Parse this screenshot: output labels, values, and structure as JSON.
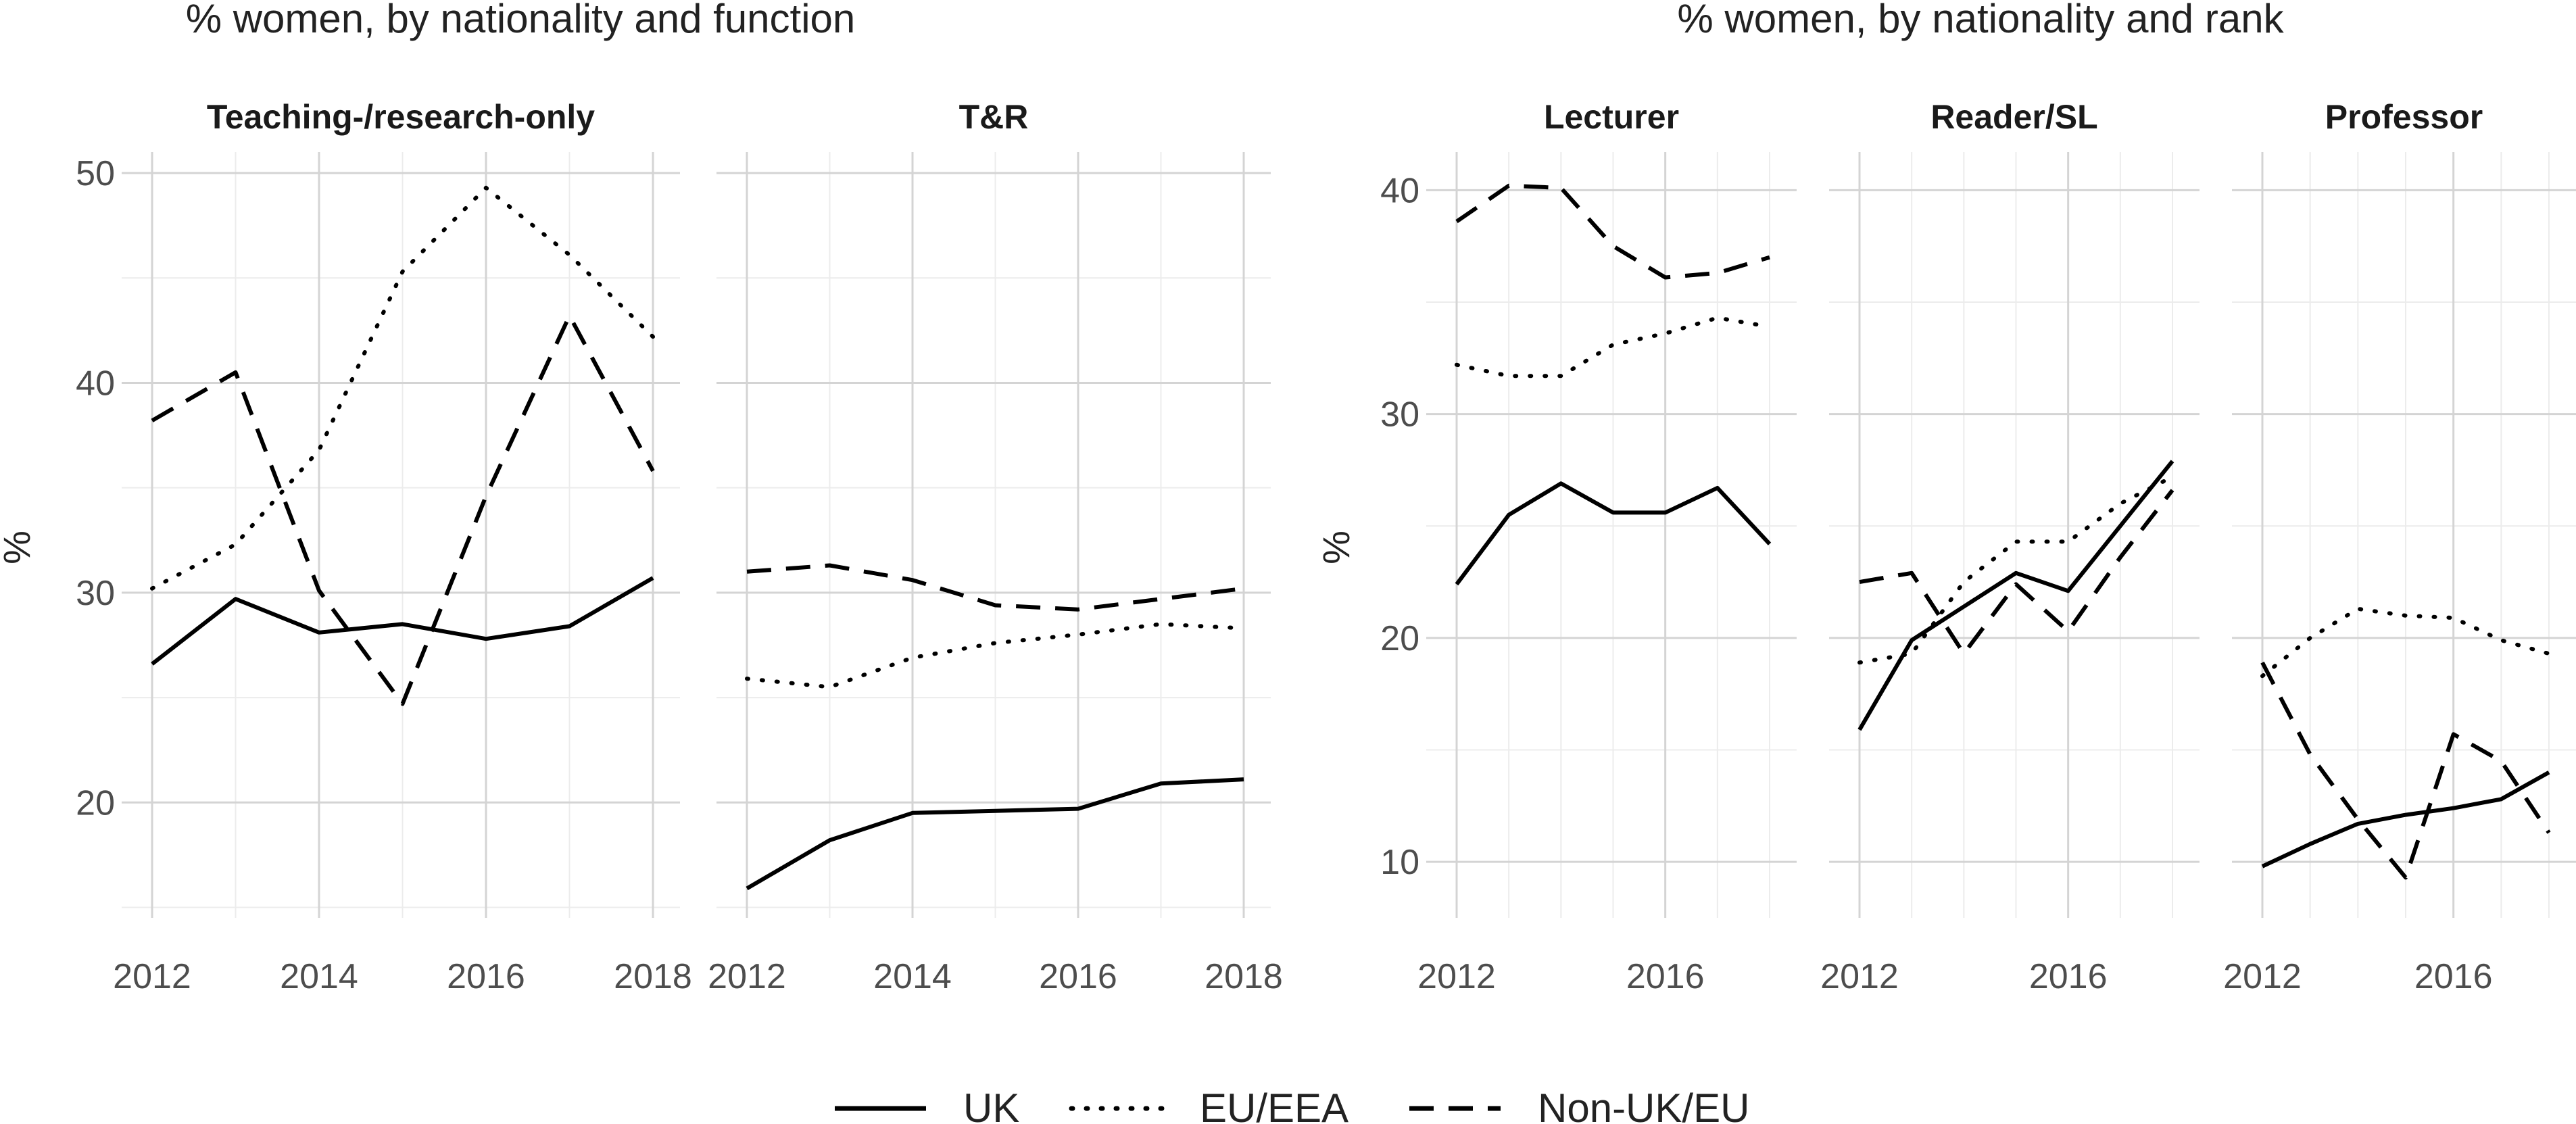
{
  "chart_data": [
    {
      "type": "line",
      "title": "% women, by nationality and function",
      "ylabel": "%",
      "xlabel": "",
      "ylim": [
        14.5,
        51
      ],
      "yticks": [
        20,
        30,
        40,
        50
      ],
      "ytick_labels": [
        "20",
        "30",
        "40",
        "50"
      ],
      "xlim": [
        2012,
        2018
      ],
      "xticks": [
        2012,
        2014,
        2016,
        2018
      ],
      "xtick_labels": [
        "2012",
        "2014",
        "2016",
        "2018"
      ],
      "grid": true,
      "legend": "bottom",
      "panels": [
        {
          "title": "Teaching-/research-only",
          "x": [
            2012,
            2013,
            2014,
            2015,
            2016,
            2017,
            2018
          ],
          "series": [
            {
              "name": "UK",
              "values": [
                26.6,
                29.7,
                28.1,
                28.5,
                27.8,
                28.4,
                30.7
              ]
            },
            {
              "name": "EU/EEA",
              "values": [
                30.2,
                32.3,
                36.8,
                45.3,
                49.3,
                46.1,
                42.2
              ]
            },
            {
              "name": "Non-UK/EU",
              "values": [
                38.2,
                40.5,
                30.1,
                24.7,
                34.6,
                43.2,
                35.8
              ]
            }
          ]
        },
        {
          "title": "T&R",
          "x": [
            2012,
            2013,
            2014,
            2015,
            2016,
            2017,
            2018
          ],
          "series": [
            {
              "name": "UK",
              "values": [
                15.9,
                18.2,
                19.5,
                19.6,
                19.7,
                20.9,
                21.1
              ]
            },
            {
              "name": "EU/EEA",
              "values": [
                25.9,
                25.5,
                26.9,
                27.6,
                28.0,
                28.5,
                28.3
              ]
            },
            {
              "name": "Non-UK/EU",
              "values": [
                31.0,
                31.3,
                30.6,
                29.4,
                29.2,
                29.7,
                30.2
              ]
            }
          ]
        }
      ]
    },
    {
      "type": "line",
      "title": "% women, by nationality and rank",
      "ylabel": "%",
      "xlabel": "",
      "ylim": [
        7.5,
        41.7
      ],
      "yticks": [
        10,
        20,
        30,
        40
      ],
      "ytick_labels": [
        "10",
        "20",
        "30",
        "40"
      ],
      "xlim": [
        2012,
        2018
      ],
      "xticks": [
        2012,
        2016
      ],
      "xtick_labels": [
        "2012",
        "2016"
      ],
      "grid": true,
      "legend": "bottom",
      "panels": [
        {
          "title": "Lecturer",
          "x": [
            2012,
            2013,
            2014,
            2015,
            2016,
            2017,
            2018
          ],
          "series": [
            {
              "name": "UK",
              "values": [
                22.4,
                25.5,
                26.9,
                25.6,
                25.6,
                26.7,
                24.2
              ]
            },
            {
              "name": "EU/EEA",
              "values": [
                32.2,
                31.7,
                31.7,
                33.1,
                33.6,
                34.3,
                33.9
              ]
            },
            {
              "name": "Non-UK/EU",
              "values": [
                38.6,
                40.2,
                40.1,
                37.5,
                36.1,
                36.3,
                37.0
              ]
            }
          ]
        },
        {
          "title": "Reader/SL",
          "x": [
            2012,
            2013,
            2014,
            2015,
            2016,
            2017,
            2018
          ],
          "series": [
            {
              "name": "UK",
              "values": [
                15.9,
                19.9,
                21.4,
                22.9,
                22.1,
                25.0,
                27.9
              ]
            },
            {
              "name": "EU/EEA",
              "values": [
                18.9,
                19.3,
                22.5,
                24.3,
                24.3,
                26.0,
                27.2
              ]
            },
            {
              "name": "Non-UK/EU",
              "values": [
                22.5,
                22.9,
                19.3,
                22.4,
                20.3,
                23.6,
                26.6
              ]
            }
          ]
        },
        {
          "title": "Professor",
          "x": [
            2012,
            2013,
            2014,
            2015,
            2016,
            2017,
            2018
          ],
          "series": [
            {
              "name": "UK",
              "values": [
                9.8,
                10.8,
                11.7,
                12.1,
                12.4,
                12.8,
                14.0
              ]
            },
            {
              "name": "EU/EEA",
              "values": [
                18.3,
                20.0,
                21.3,
                21.0,
                20.9,
                19.9,
                19.3
              ]
            },
            {
              "name": "Non-UK/EU",
              "values": [
                18.9,
                14.8,
                11.9,
                9.3,
                15.7,
                14.5,
                11.3
              ]
            }
          ]
        }
      ]
    }
  ],
  "legend": {
    "items": [
      {
        "label": "UK",
        "style": "solid"
      },
      {
        "label": "EU/EEA",
        "style": "dotted"
      },
      {
        "label": "Non-UK/EU",
        "style": "dashed"
      }
    ]
  },
  "colors": {
    "line": "#000000",
    "grid_major": "#d4d4d4",
    "grid_minor": "#ececec",
    "text": "#4d4d4d"
  }
}
